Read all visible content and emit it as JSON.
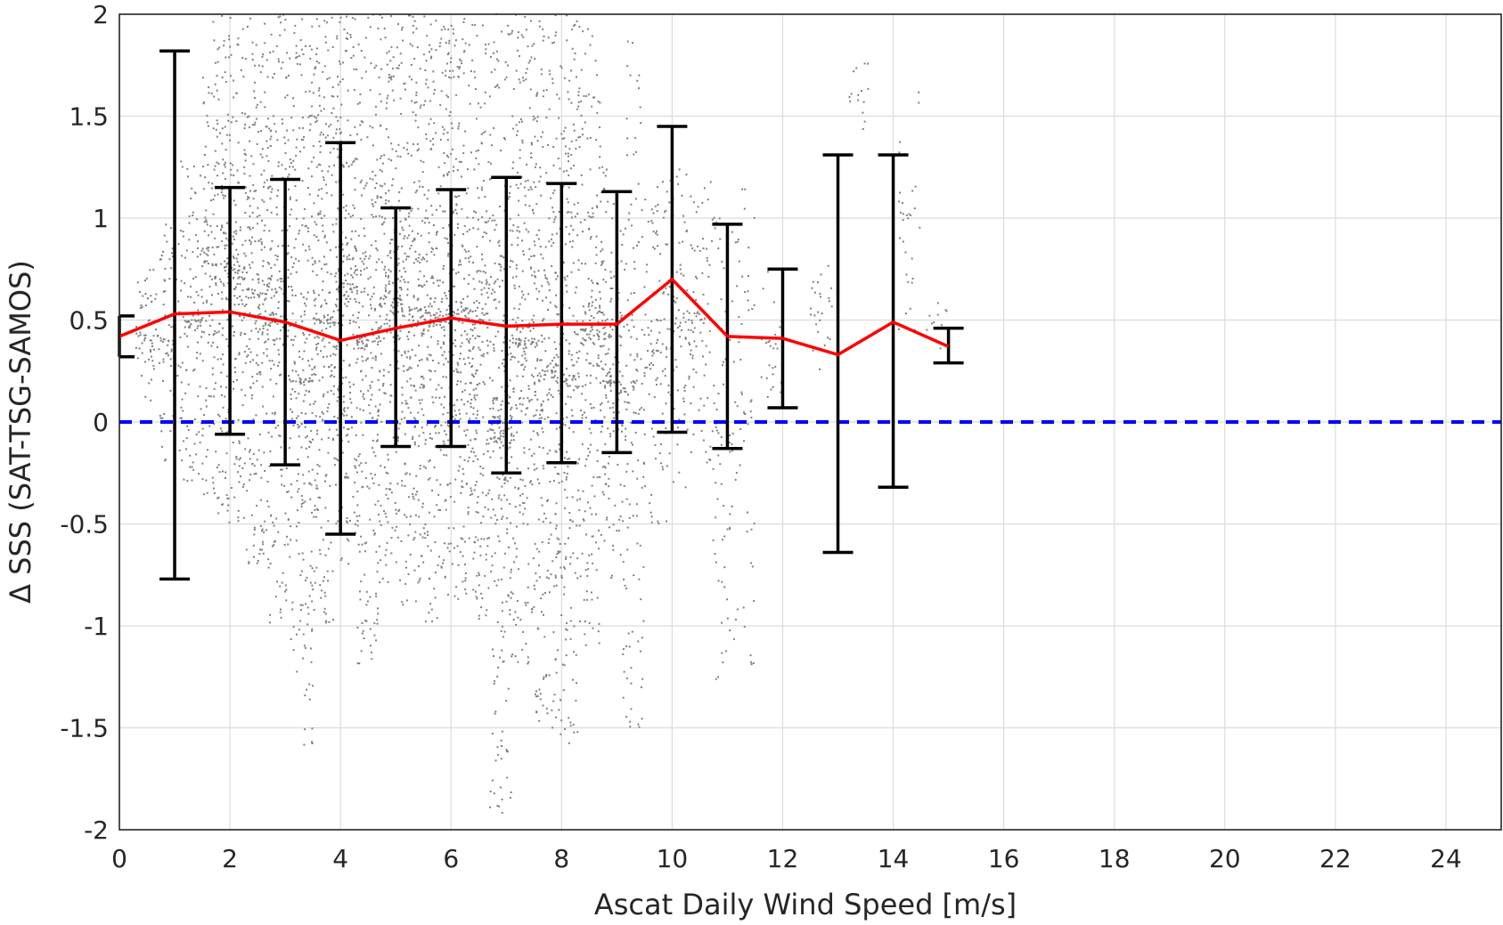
{
  "chart_data": {
    "type": "scatter",
    "xlabel": "Ascat Daily Wind Speed [m/s]",
    "ylabel": "Δ SSS (SAT-TSG-SAMOS)",
    "xlim": [
      0,
      25
    ],
    "ylim": [
      -2,
      2
    ],
    "x_ticks": [
      "0",
      "2",
      "4",
      "6",
      "8",
      "10",
      "12",
      "14",
      "16",
      "18",
      "20",
      "22",
      "24"
    ],
    "y_ticks": [
      "2",
      "1.5",
      "1",
      "0.5",
      "0",
      "-0.5",
      "-1",
      "-1.5",
      "-2"
    ],
    "grid": true,
    "reference_line": {
      "y": 0,
      "style": "dashed",
      "color": "#0000ff"
    },
    "colors": {
      "scatter": "#808080",
      "mean": "#ff0000",
      "errorbar": "#000000",
      "reference": "#0000ff"
    },
    "scatter_columns": [
      {
        "x": 0.5,
        "ymin": 0.1,
        "ymax": 0.75,
        "count": 60
      },
      {
        "x": 0.9,
        "ymin": -0.2,
        "ymax": 1.0,
        "count": 80
      },
      {
        "x": 1.3,
        "ymin": -0.3,
        "ymax": 1.3,
        "count": 120
      },
      {
        "x": 1.7,
        "ymin": -0.45,
        "ymax": 2.0,
        "count": 200
      },
      {
        "x": 2.1,
        "ymin": -0.5,
        "ymax": 2.0,
        "count": 220
      },
      {
        "x": 2.5,
        "ymin": -0.7,
        "ymax": 2.0,
        "count": 240
      },
      {
        "x": 2.9,
        "ymin": -1.0,
        "ymax": 2.0,
        "count": 240
      },
      {
        "x": 3.3,
        "ymin": -1.6,
        "ymax": 2.0,
        "count": 260
      },
      {
        "x": 3.7,
        "ymin": -1.0,
        "ymax": 2.0,
        "count": 260
      },
      {
        "x": 4.1,
        "ymin": -0.7,
        "ymax": 2.0,
        "count": 260
      },
      {
        "x": 4.5,
        "ymin": -1.2,
        "ymax": 2.0,
        "count": 260
      },
      {
        "x": 4.9,
        "ymin": -0.8,
        "ymax": 2.0,
        "count": 260
      },
      {
        "x": 5.3,
        "ymin": -0.9,
        "ymax": 2.0,
        "count": 260
      },
      {
        "x": 5.7,
        "ymin": -1.0,
        "ymax": 2.0,
        "count": 260
      },
      {
        "x": 6.1,
        "ymin": -0.9,
        "ymax": 2.0,
        "count": 260
      },
      {
        "x": 6.5,
        "ymin": -1.0,
        "ymax": 2.0,
        "count": 260
      },
      {
        "x": 6.9,
        "ymin": -2.0,
        "ymax": 2.0,
        "count": 300
      },
      {
        "x": 7.3,
        "ymin": -1.2,
        "ymax": 2.0,
        "count": 260
      },
      {
        "x": 7.7,
        "ymin": -1.5,
        "ymax": 2.0,
        "count": 260
      },
      {
        "x": 8.1,
        "ymin": -1.6,
        "ymax": 2.0,
        "count": 260
      },
      {
        "x": 8.5,
        "ymin": -1.1,
        "ymax": 2.0,
        "count": 220
      },
      {
        "x": 8.9,
        "ymin": -0.9,
        "ymax": 1.3,
        "count": 180
      },
      {
        "x": 9.3,
        "ymin": -1.5,
        "ymax": 1.9,
        "count": 140
      },
      {
        "x": 9.7,
        "ymin": -0.5,
        "ymax": 1.2,
        "count": 100
      },
      {
        "x": 10.1,
        "ymin": -0.4,
        "ymax": 1.3,
        "count": 90
      },
      {
        "x": 10.5,
        "ymin": -0.2,
        "ymax": 1.2,
        "count": 80
      },
      {
        "x": 10.9,
        "ymin": -1.3,
        "ymax": 1.1,
        "count": 70
      },
      {
        "x": 11.3,
        "ymin": -1.2,
        "ymax": 1.25,
        "count": 60
      },
      {
        "x": 11.8,
        "ymin": 0.05,
        "ymax": 0.75,
        "count": 25
      },
      {
        "x": 12.7,
        "ymin": 0.2,
        "ymax": 0.9,
        "count": 25
      },
      {
        "x": 13.4,
        "ymin": 1.4,
        "ymax": 1.8,
        "count": 15
      },
      {
        "x": 14.3,
        "ymin": 0.3,
        "ymax": 1.7,
        "count": 30
      },
      {
        "x": 14.8,
        "ymin": 0.35,
        "ymax": 0.6,
        "count": 10
      }
    ],
    "series": [
      {
        "type": "line",
        "x": [
          0,
          1,
          2,
          3,
          4,
          5,
          6,
          7,
          8,
          9,
          10,
          11,
          12,
          13,
          14,
          15
        ],
        "y": [
          0.42,
          0.53,
          0.54,
          0.49,
          0.4,
          0.46,
          0.51,
          0.47,
          0.48,
          0.48,
          0.7,
          0.42,
          0.41,
          0.33,
          0.49,
          0.37
        ]
      },
      {
        "type": "errorbar",
        "x": [
          0,
          1,
          2,
          3,
          4,
          5,
          6,
          7,
          8,
          9,
          10,
          11,
          12,
          13,
          14,
          15
        ],
        "lower": [
          0.32,
          -0.77,
          -0.06,
          -0.21,
          -0.55,
          -0.12,
          -0.12,
          -0.25,
          -0.2,
          -0.15,
          -0.05,
          -0.13,
          0.07,
          -0.64,
          -0.32,
          0.29
        ],
        "upper": [
          0.52,
          1.82,
          1.15,
          1.19,
          1.37,
          1.05,
          1.14,
          1.2,
          1.17,
          1.13,
          1.45,
          0.97,
          0.75,
          1.31,
          1.31,
          0.46
        ]
      }
    ]
  }
}
